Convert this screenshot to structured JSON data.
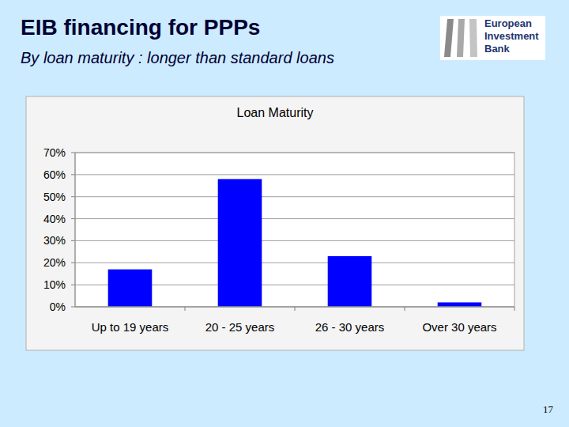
{
  "slide": {
    "title": "EIB financing for PPPs",
    "subtitle": "By loan maturity : longer than standard loans",
    "logo": [
      "European",
      "Investment",
      "Bank"
    ],
    "page_number": "17"
  },
  "chart_data": {
    "type": "bar",
    "title": "Loan Maturity",
    "categories": [
      "Up to 19 years",
      "20 - 25 years",
      "26 - 30 years",
      "Over 30 years"
    ],
    "values": [
      17,
      58,
      23,
      2
    ],
    "color": "#0000ff",
    "ylim": [
      0,
      70
    ],
    "yticks": [
      {
        "value": 0,
        "label": "0%"
      },
      {
        "value": 10,
        "label": "10%"
      },
      {
        "value": 20,
        "label": "20%"
      },
      {
        "value": 30,
        "label": "30%"
      },
      {
        "value": 40,
        "label": "40%"
      },
      {
        "value": 50,
        "label": "50%"
      },
      {
        "value": 60,
        "label": "60%"
      },
      {
        "value": 70,
        "label": "70%"
      }
    ],
    "grid": true
  }
}
